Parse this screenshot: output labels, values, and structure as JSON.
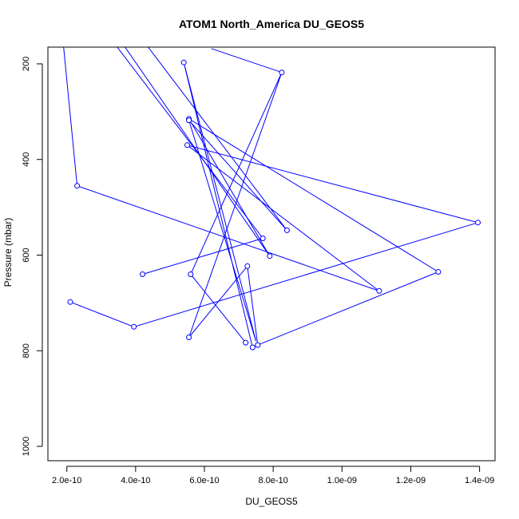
{
  "chart_data": {
    "type": "line",
    "title": "ATOM1 North_America DU_GEOS5",
    "xlabel": "DU_GEOS5",
    "ylabel": "Pressure (mbar)",
    "xlim": [
      1.45e-10,
      1.445e-09
    ],
    "ylim": [
      1030,
      165
    ],
    "y_inverted": true,
    "grid": false,
    "legend": "none",
    "colors": {
      "series": "#0000ff",
      "axis": "#000000"
    },
    "x_ticks": [
      {
        "value": 2e-10,
        "label": "2.0e-10"
      },
      {
        "value": 4e-10,
        "label": "4.0e-10"
      },
      {
        "value": 6e-10,
        "label": "6.0e-10"
      },
      {
        "value": 8e-10,
        "label": "8.0e-10"
      },
      {
        "value": 1e-09,
        "label": "1.0e-09"
      },
      {
        "value": 1.2e-09,
        "label": "1.2e-09"
      },
      {
        "value": 1.4e-09,
        "label": "1.4e-09"
      }
    ],
    "y_ticks": [
      {
        "value": 200,
        "label": "200"
      },
      {
        "value": 400,
        "label": "400"
      },
      {
        "value": 600,
        "label": "600"
      },
      {
        "value": 800,
        "label": "800"
      },
      {
        "value": 1000,
        "label": "1000"
      }
    ],
    "series": [
      {
        "line_only": true,
        "points": [
          {
            "x": 1.88e-10,
            "y": 145
          },
          {
            "x": 2.3e-10,
            "y": 455
          },
          {
            "x": 1.108e-09,
            "y": 675
          },
          {
            "x": 5.5e-10,
            "y": 370
          },
          {
            "x": 1.395e-09,
            "y": 532
          },
          {
            "x": 3.95e-10,
            "y": 750
          },
          {
            "x": 2.1e-10,
            "y": 698
          }
        ]
      },
      {
        "line_only": true,
        "points": [
          {
            "x": 3.2e-10,
            "y": 140
          },
          {
            "x": 7.7e-10,
            "y": 565
          },
          {
            "x": 4.2e-10,
            "y": 640
          }
        ]
      },
      {
        "line_only": true,
        "points": [
          {
            "x": 3.45e-10,
            "y": 140
          },
          {
            "x": 7.9e-10,
            "y": 602
          },
          {
            "x": 5.55e-10,
            "y": 315
          },
          {
            "x": 1.28e-09,
            "y": 635
          },
          {
            "x": 7.55e-10,
            "y": 788
          },
          {
            "x": 7.25e-10,
            "y": 623
          },
          {
            "x": 5.55e-10,
            "y": 772
          },
          {
            "x": 8.25e-10,
            "y": 218
          },
          {
            "x": 5.6e-10,
            "y": 640
          },
          {
            "x": 7.2e-10,
            "y": 783
          }
        ]
      },
      {
        "line_only": true,
        "points": [
          {
            "x": 4.1e-10,
            "y": 140
          },
          {
            "x": 8.4e-10,
            "y": 548
          },
          {
            "x": 5.55e-10,
            "y": 318
          },
          {
            "x": 7.5e-10,
            "y": 780
          },
          {
            "x": 5.4e-10,
            "y": 197
          },
          {
            "x": 7.4e-10,
            "y": 793
          }
        ]
      },
      {
        "line_only": true,
        "points": [
          {
            "x": 6.2e-10,
            "y": 168
          },
          {
            "x": 8.25e-10,
            "y": 218
          }
        ]
      }
    ],
    "markers": [
      {
        "x": 2.3e-10,
        "y": 455
      },
      {
        "x": 1.108e-09,
        "y": 675
      },
      {
        "x": 5.5e-10,
        "y": 370
      },
      {
        "x": 1.395e-09,
        "y": 532
      },
      {
        "x": 3.95e-10,
        "y": 750
      },
      {
        "x": 2.1e-10,
        "y": 698
      },
      {
        "x": 7.7e-10,
        "y": 565
      },
      {
        "x": 4.2e-10,
        "y": 640
      },
      {
        "x": 7.9e-10,
        "y": 602
      },
      {
        "x": 5.55e-10,
        "y": 315
      },
      {
        "x": 1.28e-09,
        "y": 635
      },
      {
        "x": 7.55e-10,
        "y": 788
      },
      {
        "x": 7.25e-10,
        "y": 623
      },
      {
        "x": 5.55e-10,
        "y": 772
      },
      {
        "x": 8.25e-10,
        "y": 218
      },
      {
        "x": 5.6e-10,
        "y": 640
      },
      {
        "x": 7.2e-10,
        "y": 783
      },
      {
        "x": 8.4e-10,
        "y": 548
      },
      {
        "x": 5.55e-10,
        "y": 318
      },
      {
        "x": 5.4e-10,
        "y": 197
      },
      {
        "x": 7.4e-10,
        "y": 793
      }
    ]
  }
}
